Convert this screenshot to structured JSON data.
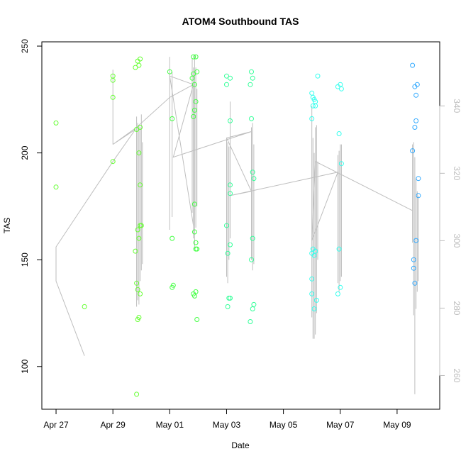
{
  "chart_data": {
    "type": "scatter",
    "title": "ATOM4 Southbound TAS",
    "xlabel": "Date",
    "ylabel": "TAS",
    "x_tick_labels": [
      "Apr 27",
      "Apr 29",
      "May 01",
      "May 03",
      "May 05",
      "May 07",
      "May 09"
    ],
    "xlim": [
      "2021-04-26T12:00",
      "2021-05-10T12:00"
    ],
    "ylim": [
      80,
      252
    ],
    "y_ticks": [
      100,
      150,
      200,
      250
    ],
    "y2lim": [
      250,
      359
    ],
    "y2_ticks": [
      260,
      280,
      300,
      320,
      340
    ],
    "grid": false,
    "line_color": "#bebebe",
    "series": [
      {
        "color": "#66ff33",
        "points": [
          {
            "x": "2021-04-27T00:00",
            "y": 214
          },
          {
            "x": "2021-04-27T00:00",
            "y": 184
          },
          {
            "x": "2021-04-28T00:00",
            "y": 128
          },
          {
            "x": "2021-04-29T00:00",
            "y": 236
          },
          {
            "x": "2021-04-29T00:00",
            "y": 234
          },
          {
            "x": "2021-04-29T00:00",
            "y": 226
          },
          {
            "x": "2021-04-29T00:00",
            "y": 196
          },
          {
            "x": "2021-04-29T19:00",
            "y": 240
          },
          {
            "x": "2021-04-29T21:00",
            "y": 243
          },
          {
            "x": "2021-04-29T22:00",
            "y": 241
          },
          {
            "x": "2021-04-29T23:00",
            "y": 244
          },
          {
            "x": "2021-04-29T20:00",
            "y": 211
          },
          {
            "x": "2021-04-29T23:00",
            "y": 212
          },
          {
            "x": "2021-04-29T22:00",
            "y": 200
          },
          {
            "x": "2021-04-29T23:00",
            "y": 185
          },
          {
            "x": "2021-04-29T21:00",
            "y": 164
          },
          {
            "x": "2021-04-29T23:00",
            "y": 166
          },
          {
            "x": "2021-04-30T00:00",
            "y": 166
          },
          {
            "x": "2021-04-29T22:00",
            "y": 160
          },
          {
            "x": "2021-04-29T19:00",
            "y": 154
          },
          {
            "x": "2021-04-29T20:00",
            "y": 139
          },
          {
            "x": "2021-04-29T21:00",
            "y": 136
          },
          {
            "x": "2021-04-29T23:00",
            "y": 134
          },
          {
            "x": "2021-04-29T21:00",
            "y": 122
          },
          {
            "x": "2021-04-29T22:00",
            "y": 123
          },
          {
            "x": "2021-04-29T20:00",
            "y": 87
          }
        ]
      },
      {
        "color": "#44ff44",
        "points": [
          {
            "x": "2021-05-01T00:00",
            "y": 238
          },
          {
            "x": "2021-05-01T02:00",
            "y": 216
          },
          {
            "x": "2021-05-01T02:00",
            "y": 160
          },
          {
            "x": "2021-05-01T02:00",
            "y": 137
          },
          {
            "x": "2021-05-01T03:00",
            "y": 138
          },
          {
            "x": "2021-05-01T20:00",
            "y": 245
          },
          {
            "x": "2021-05-01T22:00",
            "y": 245
          },
          {
            "x": "2021-05-01T20:00",
            "y": 237
          },
          {
            "x": "2021-05-01T23:00",
            "y": 238
          },
          {
            "x": "2021-05-01T19:00",
            "y": 235
          },
          {
            "x": "2021-05-01T21:00",
            "y": 232
          },
          {
            "x": "2021-05-01T22:00",
            "y": 224
          },
          {
            "x": "2021-05-01T21:00",
            "y": 220
          },
          {
            "x": "2021-05-01T20:00",
            "y": 217
          },
          {
            "x": "2021-05-01T21:00",
            "y": 176
          },
          {
            "x": "2021-05-01T21:00",
            "y": 163
          },
          {
            "x": "2021-05-01T22:00",
            "y": 158
          },
          {
            "x": "2021-05-01T22:00",
            "y": 155
          },
          {
            "x": "2021-05-01T23:00",
            "y": 155
          },
          {
            "x": "2021-05-01T20:00",
            "y": 134
          },
          {
            "x": "2021-05-01T21:00",
            "y": 133
          },
          {
            "x": "2021-05-01T22:00",
            "y": 135
          },
          {
            "x": "2021-05-01T23:00",
            "y": 122
          }
        ]
      },
      {
        "color": "#33ff99",
        "points": [
          {
            "x": "2021-05-03T00:00",
            "y": 236
          },
          {
            "x": "2021-05-03T00:00",
            "y": 232
          },
          {
            "x": "2021-05-03T03:00",
            "y": 235
          },
          {
            "x": "2021-05-03T03:00",
            "y": 215
          },
          {
            "x": "2021-05-03T03:00",
            "y": 185
          },
          {
            "x": "2021-05-03T03:00",
            "y": 181
          },
          {
            "x": "2021-05-03T00:00",
            "y": 166
          },
          {
            "x": "2021-05-03T03:00",
            "y": 157
          },
          {
            "x": "2021-05-03T01:00",
            "y": 153
          },
          {
            "x": "2021-05-03T02:00",
            "y": 132
          },
          {
            "x": "2021-05-03T03:00",
            "y": 132
          },
          {
            "x": "2021-05-03T01:00",
            "y": 128
          },
          {
            "x": "2021-05-03T21:00",
            "y": 238
          },
          {
            "x": "2021-05-03T22:00",
            "y": 235
          },
          {
            "x": "2021-05-03T20:00",
            "y": 232
          },
          {
            "x": "2021-05-03T21:00",
            "y": 216
          },
          {
            "x": "2021-05-03T22:00",
            "y": 191
          },
          {
            "x": "2021-05-03T23:00",
            "y": 188
          },
          {
            "x": "2021-05-03T21:00",
            "y": 150
          },
          {
            "x": "2021-05-03T22:00",
            "y": 160
          },
          {
            "x": "2021-05-03T23:00",
            "y": 129
          },
          {
            "x": "2021-05-03T22:00",
            "y": 127
          },
          {
            "x": "2021-05-03T20:00",
            "y": 121
          }
        ]
      },
      {
        "color": "#33ffee",
        "points": [
          {
            "x": "2021-05-06T00:00",
            "y": 228
          },
          {
            "x": "2021-05-06T01:00",
            "y": 226
          },
          {
            "x": "2021-05-06T02:00",
            "y": 225
          },
          {
            "x": "2021-05-06T03:00",
            "y": 224
          },
          {
            "x": "2021-05-06T01:00",
            "y": 222
          },
          {
            "x": "2021-05-06T03:00",
            "y": 222
          },
          {
            "x": "2021-05-06T05:00",
            "y": 236
          },
          {
            "x": "2021-05-06T00:00",
            "y": 216
          },
          {
            "x": "2021-05-06T01:00",
            "y": 155
          },
          {
            "x": "2021-05-06T00:00",
            "y": 153
          },
          {
            "x": "2021-05-06T02:00",
            "y": 152
          },
          {
            "x": "2021-05-06T03:00",
            "y": 154
          },
          {
            "x": "2021-05-06T00:00",
            "y": 141
          },
          {
            "x": "2021-05-06T00:00",
            "y": 134
          },
          {
            "x": "2021-05-06T04:00",
            "y": 131
          },
          {
            "x": "2021-05-06T02:00",
            "y": 127
          },
          {
            "x": "2021-05-06T22:00",
            "y": 231
          },
          {
            "x": "2021-05-07T00:00",
            "y": 232
          },
          {
            "x": "2021-05-07T01:00",
            "y": 230
          },
          {
            "x": "2021-05-06T23:00",
            "y": 209
          },
          {
            "x": "2021-05-07T01:00",
            "y": 195
          },
          {
            "x": "2021-05-06T23:00",
            "y": 155
          },
          {
            "x": "2021-05-07T00:00",
            "y": 137
          },
          {
            "x": "2021-05-06T22:00",
            "y": 134
          }
        ]
      },
      {
        "color": "#33aaff",
        "points": [
          {
            "x": "2021-05-09T13:00",
            "y": 241
          },
          {
            "x": "2021-05-09T15:00",
            "y": 231
          },
          {
            "x": "2021-05-09T17:00",
            "y": 232
          },
          {
            "x": "2021-05-09T16:00",
            "y": 227
          },
          {
            "x": "2021-05-09T16:00",
            "y": 215
          },
          {
            "x": "2021-05-09T15:00",
            "y": 212
          },
          {
            "x": "2021-05-09T13:00",
            "y": 201
          },
          {
            "x": "2021-05-09T18:00",
            "y": 188
          },
          {
            "x": "2021-05-09T18:00",
            "y": 180
          },
          {
            "x": "2021-05-09T16:00",
            "y": 159
          },
          {
            "x": "2021-05-09T14:00",
            "y": 150
          },
          {
            "x": "2021-05-09T14:00",
            "y": 146
          },
          {
            "x": "2021-05-09T15:00",
            "y": 139
          }
        ]
      }
    ],
    "vertical_ranges": [
      {
        "x": "2021-04-29T00:00",
        "y": [
          204,
          239
        ]
      },
      {
        "x": "2021-04-29T20:00",
        "y": [
          128,
          217
        ]
      },
      {
        "x": "2021-04-29T21:00",
        "y": [
          131,
          214
        ]
      },
      {
        "x": "2021-04-29T22:00",
        "y": [
          129,
          213
        ]
      },
      {
        "x": "2021-04-29T23:00",
        "y": [
          140,
          212
        ]
      },
      {
        "x": "2021-04-30T00:00",
        "y": [
          145,
          218
        ]
      },
      {
        "x": "2021-04-30T01:00",
        "y": [
          148,
          205
        ]
      },
      {
        "x": "2021-05-01T00:00",
        "y": [
          164,
          245
        ]
      },
      {
        "x": "2021-05-01T02:00",
        "y": [
          170,
          238
        ]
      },
      {
        "x": "2021-05-01T19:00",
        "y": [
          172,
          244
        ]
      },
      {
        "x": "2021-05-01T20:00",
        "y": [
          160,
          240
        ]
      },
      {
        "x": "2021-05-01T21:00",
        "y": [
          155,
          246
        ]
      },
      {
        "x": "2021-05-01T22:00",
        "y": [
          165,
          240
        ]
      },
      {
        "x": "2021-05-01T23:00",
        "y": [
          175,
          230
        ]
      },
      {
        "x": "2021-05-03T00:00",
        "y": [
          142,
          207
        ]
      },
      {
        "x": "2021-05-03T01:00",
        "y": [
          139,
          205
        ]
      },
      {
        "x": "2021-05-03T02:00",
        "y": [
          150,
          203
        ]
      },
      {
        "x": "2021-05-03T03:00",
        "y": [
          160,
          224
        ]
      },
      {
        "x": "2021-05-03T21:00",
        "y": [
          150,
          212
        ]
      },
      {
        "x": "2021-05-03T22:00",
        "y": [
          145,
          214
        ]
      },
      {
        "x": "2021-05-03T23:00",
        "y": [
          148,
          204
        ]
      },
      {
        "x": "2021-05-06T00:00",
        "y": [
          123,
          222
        ]
      },
      {
        "x": "2021-05-06T01:00",
        "y": [
          113,
          207
        ]
      },
      {
        "x": "2021-05-06T02:00",
        "y": [
          113,
          200
        ]
      },
      {
        "x": "2021-05-06T03:00",
        "y": [
          115,
          212
        ]
      },
      {
        "x": "2021-05-06T04:00",
        "y": [
          125,
          213
        ]
      },
      {
        "x": "2021-05-06T05:00",
        "y": [
          150,
          196
        ]
      },
      {
        "x": "2021-05-06T22:00",
        "y": [
          139,
          199
        ]
      },
      {
        "x": "2021-05-06T23:00",
        "y": [
          135,
          201
        ]
      },
      {
        "x": "2021-05-07T00:00",
        "y": [
          140,
          204
        ]
      },
      {
        "x": "2021-05-07T01:00",
        "y": [
          142,
          204
        ]
      },
      {
        "x": "2021-05-09T13:00",
        "y": [
          158,
          204
        ]
      },
      {
        "x": "2021-05-09T14:00",
        "y": [
          124,
          205
        ]
      },
      {
        "x": "2021-05-09T15:00",
        "y": [
          87,
          198
        ]
      },
      {
        "x": "2021-05-09T16:00",
        "y": [
          127,
          188
        ]
      },
      {
        "x": "2021-05-09T17:00",
        "y": [
          135,
          182
        ]
      },
      {
        "x": "2021-05-09T18:00",
        "y": [
          140,
          180
        ]
      }
    ],
    "path": [
      {
        "x": "2021-04-28T00:00",
        "y": 105
      },
      {
        "x": "2021-04-27T00:00",
        "y": 140
      },
      {
        "x": "2021-04-27T00:00",
        "y": 156
      },
      {
        "x": "2021-04-28T00:00",
        "y": 176
      },
      {
        "x": "2021-04-29T00:00",
        "y": 196
      },
      {
        "x": "2021-04-29T19:00",
        "y": 211
      },
      {
        "x": "2021-04-29T00:00",
        "y": 204
      },
      {
        "x": "2021-04-29T20:00",
        "y": 212
      },
      {
        "x": "2021-05-01T00:00",
        "y": 226
      },
      {
        "x": "2021-05-01T20:00",
        "y": 232
      },
      {
        "x": "2021-05-01T00:00",
        "y": 236
      },
      {
        "x": "2021-05-01T20:00",
        "y": 166
      },
      {
        "x": "2021-05-01T20:00",
        "y": 232
      },
      {
        "x": "2021-05-01T03:00",
        "y": 198
      },
      {
        "x": "2021-05-03T21:00",
        "y": 210
      },
      {
        "x": "2021-05-03T00:00",
        "y": 207
      },
      {
        "x": "2021-05-03T21:00",
        "y": 182
      },
      {
        "x": "2021-05-03T03:00",
        "y": 180
      },
      {
        "x": "2021-05-06T22:00",
        "y": 191
      },
      {
        "x": "2021-05-06T00:00",
        "y": 159
      },
      {
        "x": "2021-05-06T03:00",
        "y": 196
      },
      {
        "x": "2021-05-09T13:00",
        "y": 173
      }
    ]
  }
}
